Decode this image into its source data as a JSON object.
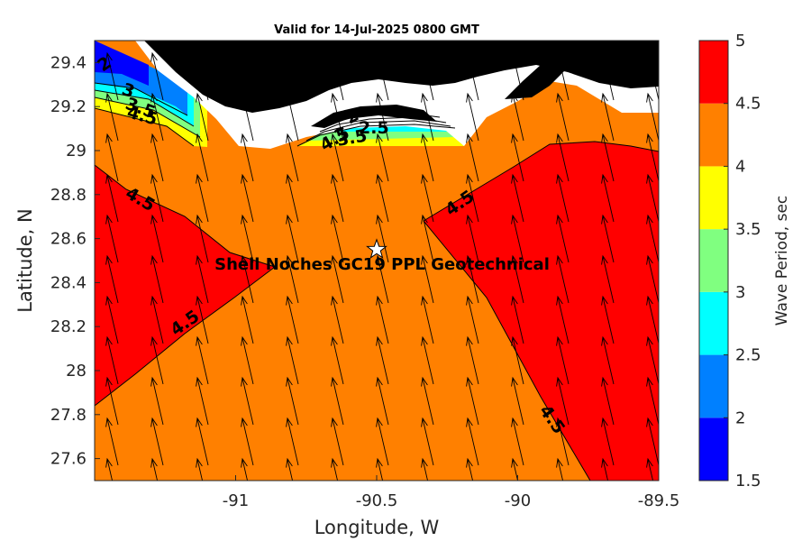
{
  "title": "Valid for 14-Jul-2025 0800 GMT",
  "xlabel": "Longitude, W",
  "ylabel": "Latitude, N",
  "site_label": "Shell Noches   GC19 PPL  Geotechnical",
  "x_ticks": [
    "-91",
    "-90.5",
    "-90",
    "-89.5"
  ],
  "y_ticks": [
    "27.6",
    "27.8",
    "28",
    "28.2",
    "28.4",
    "28.6",
    "28.8",
    "29",
    "29.2",
    "29.4"
  ],
  "colorbar": {
    "label": "Wave Period, sec",
    "ticks": [
      "1.5",
      "2",
      "2.5",
      "3",
      "3.5",
      "4",
      "4.5",
      "5"
    ],
    "bands": [
      {
        "range": [
          1.5,
          2
        ],
        "color": "#0000ff"
      },
      {
        "range": [
          2,
          2.5
        ],
        "color": "#0080ff"
      },
      {
        "range": [
          2.5,
          3
        ],
        "color": "#00ffff"
      },
      {
        "range": [
          3,
          3.5
        ],
        "color": "#80ff80"
      },
      {
        "range": [
          3.5,
          4
        ],
        "color": "#ffff00"
      },
      {
        "range": [
          4,
          4.5
        ],
        "color": "#ff8000"
      },
      {
        "range": [
          4.5,
          5
        ],
        "color": "#ff0000"
      }
    ]
  },
  "contour_labels": [
    "2",
    "3",
    "3.5",
    "4.5",
    "2",
    "2.5",
    "3",
    "4.5",
    "3.5",
    "4.5",
    "4.5",
    "4.5",
    "4.5"
  ],
  "colors": {
    "land": "#000000",
    "coast": "#ffffff",
    "high_period": "#ff0000",
    "mid_period": "#ff8000",
    "arrow": "#000000",
    "marker_fill": "#ffffff"
  },
  "marker": {
    "lon": -90.5,
    "lat": 28.55,
    "symbol": "star"
  },
  "map": {
    "lon_range": [
      -91.5,
      -89.5
    ],
    "lat_range": [
      27.5,
      29.5
    ],
    "arrow_direction": "north-northwest"
  }
}
